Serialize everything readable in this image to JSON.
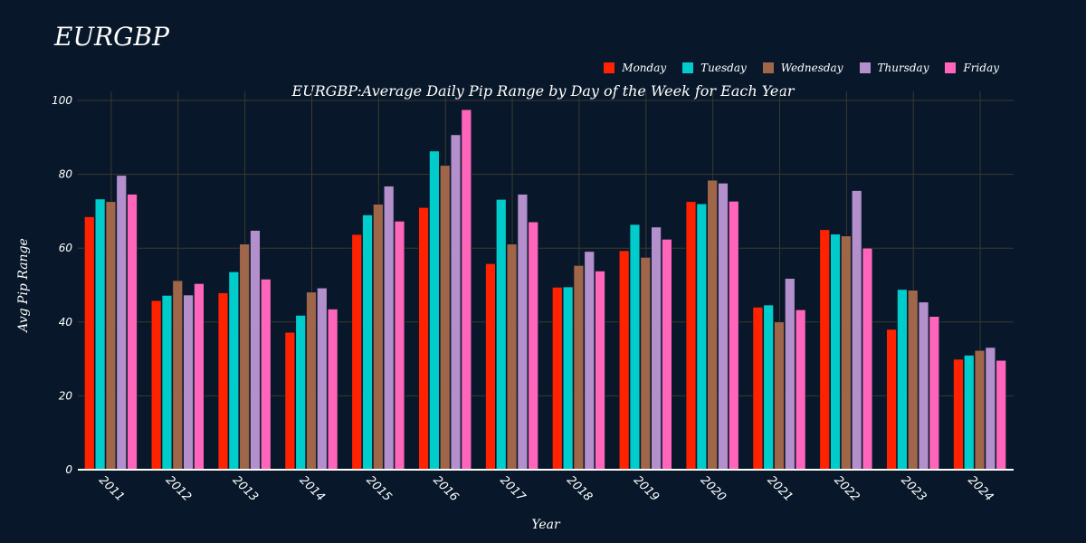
{
  "page": {
    "title": "EURGBP"
  },
  "colors": {
    "background": "#08182a",
    "grid": "#3a3a2a",
    "axis": "#ffffff"
  },
  "chart_data": {
    "type": "bar",
    "title": "EURGBP:Average Daily Pip Range by Day of the Week for Each Year",
    "xlabel": "Year",
    "ylabel": "Avg Pip Range",
    "ylim": [
      0,
      100
    ],
    "yticks": [
      0,
      20,
      40,
      60,
      80,
      100
    ],
    "grid": true,
    "legend_position": "top-right",
    "categories": [
      "2011",
      "2012",
      "2013",
      "2014",
      "2015",
      "2016",
      "2017",
      "2018",
      "2019",
      "2020",
      "2021",
      "2022",
      "2023",
      "2024"
    ],
    "series": [
      {
        "name": "Monday",
        "color": "#ff2200",
        "values": [
          68.5,
          45.8,
          47.9,
          37.2,
          63.7,
          71.0,
          55.8,
          49.4,
          59.3,
          72.6,
          44.0,
          65.0,
          38.0,
          29.9
        ]
      },
      {
        "name": "Tuesday",
        "color": "#00cccc",
        "values": [
          73.3,
          47.2,
          53.6,
          41.8,
          69.0,
          86.3,
          73.2,
          49.5,
          66.4,
          72.0,
          44.6,
          63.8,
          48.8,
          31.0
        ]
      },
      {
        "name": "Wednesday",
        "color": "#a0664a",
        "values": [
          72.6,
          51.2,
          61.1,
          48.1,
          71.9,
          82.4,
          61.1,
          55.3,
          57.5,
          78.4,
          40.0,
          63.3,
          48.6,
          32.3
        ]
      },
      {
        "name": "Thursday",
        "color": "#b38fcc",
        "values": [
          79.7,
          47.3,
          64.8,
          49.2,
          76.8,
          90.7,
          74.6,
          59.1,
          65.7,
          77.6,
          51.8,
          75.6,
          45.4,
          33.1
        ]
      },
      {
        "name": "Friday",
        "color": "#ff66bb",
        "values": [
          74.6,
          50.4,
          51.6,
          43.5,
          67.3,
          97.5,
          67.1,
          53.8,
          62.4,
          72.7,
          43.3,
          60.0,
          41.5,
          29.6
        ]
      }
    ]
  }
}
